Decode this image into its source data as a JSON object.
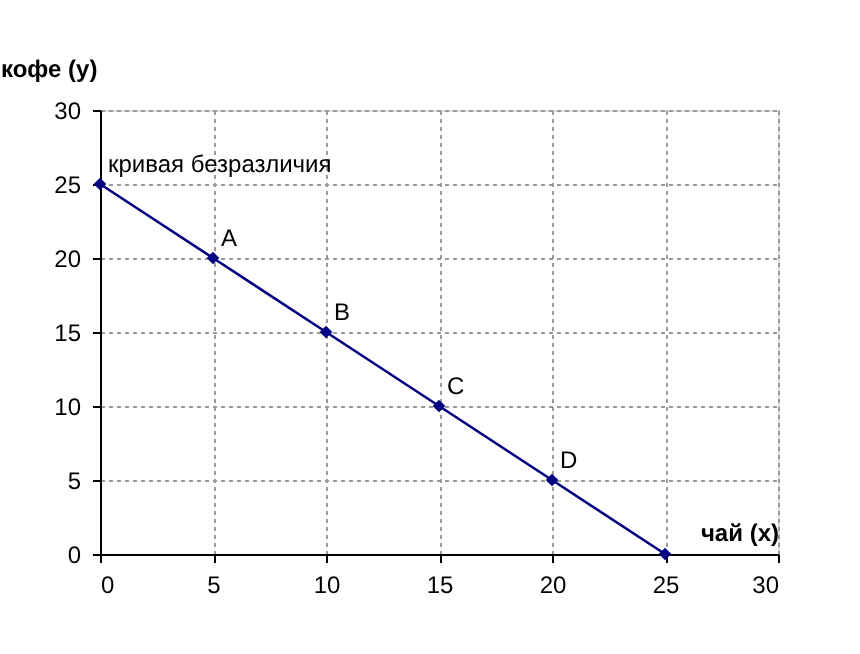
{
  "chart_data": {
    "type": "line",
    "xlabel": "чай (x)",
    "ylabel": "кофе (y)",
    "x": [
      0,
      5,
      10,
      15,
      20,
      25
    ],
    "series": [
      {
        "color": "#000080",
        "values": [
          25,
          20,
          15,
          10,
          5,
          0
        ]
      }
    ],
    "xlim": [
      0,
      30
    ],
    "xticks": [
      0,
      5,
      10,
      15,
      20,
      25,
      30
    ],
    "ylim": [
      0,
      30
    ],
    "yticks": [
      0,
      5,
      10,
      15,
      20,
      25,
      30
    ],
    "grid": true,
    "marker": "diamond",
    "line_style": "solid",
    "annotations": [
      {
        "text": "кривая безразличия",
        "x": 0,
        "y": 25
      },
      {
        "text": "A",
        "x": 5,
        "y": 20
      },
      {
        "text": "B",
        "x": 10,
        "y": 15
      },
      {
        "text": "C",
        "x": 15,
        "y": 10
      },
      {
        "text": "D",
        "x": 20,
        "y": 5
      }
    ]
  }
}
